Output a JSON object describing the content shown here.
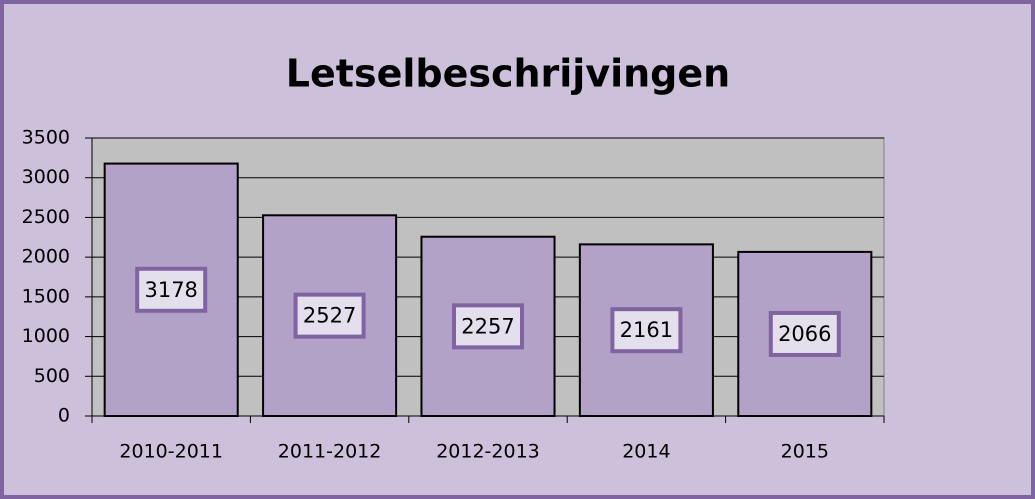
{
  "chart_data": {
    "type": "bar",
    "title": "Letselbeschrijvingen",
    "categories": [
      "2010-2011",
      "2011-2012",
      "2012-2013",
      "2014",
      "2015"
    ],
    "values": [
      3178,
      2527,
      2257,
      2161,
      2066
    ],
    "color": "#b3a2c7",
    "ylim": [
      0,
      3500
    ],
    "yticks": [
      0,
      500,
      1000,
      1500,
      2000,
      2500,
      3000,
      3500
    ],
    "grid": true
  }
}
